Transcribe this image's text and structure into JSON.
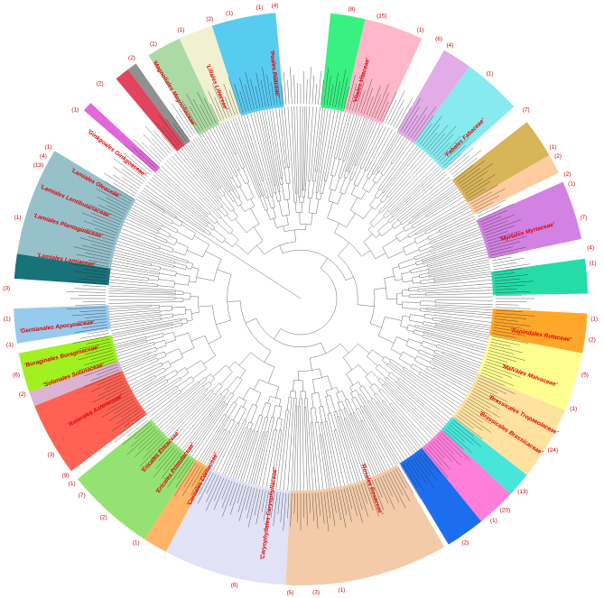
{
  "figure": {
    "counts": [
      {
        "text": "(8)",
        "angle": -80
      },
      {
        "text": "(15)",
        "angle": -74
      },
      {
        "text": "(1)",
        "angle": -66
      },
      {
        "text": "(6)",
        "angle": -62
      },
      {
        "text": "(4)",
        "angle": -59.5
      },
      {
        "text": "(1)",
        "angle": -50
      },
      {
        "text": "(7)",
        "angle": -40
      },
      {
        "text": "(1)",
        "angle": -31
      },
      {
        "text": "(2)",
        "angle": -29
      },
      {
        "text": "(2)",
        "angle": -25
      },
      {
        "text": "(1)",
        "angle": -23
      },
      {
        "text": "(7)",
        "angle": -16
      },
      {
        "text": "(4)",
        "angle": -10
      },
      {
        "text": "(1)",
        "angle": -7
      },
      {
        "text": "(1)",
        "angle": 4
      },
      {
        "text": "(2)",
        "angle": 8
      },
      {
        "text": "(5)",
        "angle": 15
      },
      {
        "text": "(1)",
        "angle": 22
      },
      {
        "text": "(24)",
        "angle": 31
      },
      {
        "text": "(13)",
        "angle": 41
      },
      {
        "text": "(20)",
        "angle": 46
      },
      {
        "text": "(1)",
        "angle": 49
      },
      {
        "text": "(2)",
        "angle": 56
      },
      {
        "text": "(1)",
        "angle": 82
      },
      {
        "text": "(3)",
        "angle": 87
      },
      {
        "text": "(5)",
        "angle": 92
      },
      {
        "text": "(6)",
        "angle": 103
      },
      {
        "text": "(1)",
        "angle": 124
      },
      {
        "text": "(2)",
        "angle": 132
      },
      {
        "text": "(7)",
        "angle": 138
      },
      {
        "text": "(1)",
        "angle": 141
      },
      {
        "text": "(9)",
        "angle": 143
      },
      {
        "text": "(3)",
        "angle": 148
      },
      {
        "text": "(2)",
        "angle": 161
      },
      {
        "text": "(6)",
        "angle": 165
      },
      {
        "text": "(1)",
        "angle": 171
      },
      {
        "text": "(1)",
        "angle": 176
      },
      {
        "text": "(3)",
        "angle": 182
      },
      {
        "text": "(1)",
        "angle": 196
      },
      {
        "text": "(13)",
        "angle": 207
      },
      {
        "text": "(4)",
        "angle": 209
      },
      {
        "text": "(1)",
        "angle": 211
      },
      {
        "text": "(1)",
        "angle": 220
      },
      {
        "text": "(2)",
        "angle": 227
      },
      {
        "text": "(2)",
        "angle": 235
      },
      {
        "text": "(1)",
        "angle": 240
      },
      {
        "text": "(1)",
        "angle": 246
      },
      {
        "text": "(2)",
        "angle": 252
      },
      {
        "text": "(1)",
        "angle": 256
      },
      {
        "text": "(1)",
        "angle": 262
      },
      {
        "text": "(4)",
        "angle": 265
      }
    ],
    "clade_labels": [
      {
        "text": "'Lamiales Lamiaceae'",
        "angle": 189,
        "r": 230
      },
      {
        "text": "'Lamiales Plantaginaceae'",
        "angle": 197,
        "r": 230
      },
      {
        "text": "'Lamiales Lentibulariaceae'",
        "angle": 203,
        "r": 230
      },
      {
        "text": "'Lamiales Oleaceae'",
        "angle": 209,
        "r": 230
      },
      {
        "text": "'Gentianales Apocynaceae'",
        "angle": 173,
        "r": 230
      },
      {
        "text": "'Boraginales Boraginaceae'",
        "angle": 166,
        "r": 230
      },
      {
        "text": "'Solanales Solanaceae'",
        "angle": 161,
        "r": 230
      },
      {
        "text": "'Asterales Asteraceae'",
        "angle": 151,
        "r": 225
      },
      {
        "text": "'Ericales Ericaceae'",
        "angle": 132,
        "r": 200
      },
      {
        "text": "'Ericales Primulaceae'",
        "angle": 126,
        "r": 200
      },
      {
        "text": "'Cornales Cornaceae'",
        "angle": 118,
        "r": 195
      },
      {
        "text": "'Caryophyllales Caryophyllaceae'",
        "angle": 98,
        "r": 190
      },
      {
        "text": "'Rosales Rosaceae'",
        "angle": 70,
        "r": 195
      },
      {
        "text": "'Malvales Malvaceae'",
        "angle": 19,
        "r": 235
      },
      {
        "text": "'Brassicales Brassicaceae'",
        "angle": 33,
        "r": 235
      },
      {
        "text": "'Brassicales Tropaeolaceae'",
        "angle": 28,
        "r": 235
      },
      {
        "text": "'Sapindales Rutaceae'",
        "angle": 9,
        "r": 235
      },
      {
        "text": "'Myrtales Myrtaceae'",
        "angle": -16,
        "r": 230
      },
      {
        "text": "'Fabales Fabaceae'",
        "angle": -44,
        "r": 225
      },
      {
        "text": "'Vitales Vitaceae'",
        "angle": -74,
        "r": 225
      },
      {
        "text": "'Poales Poaceae'",
        "angle": -97,
        "r": 225
      },
      {
        "text": "'Liliales Liliaceae'",
        "angle": -112,
        "r": 225
      },
      {
        "text": "'Magnoliales Magnoliaceae'",
        "angle": -122,
        "r": 225
      },
      {
        "text": "'Ginkgoales Ginkgoaceae'",
        "angle": -142,
        "r": 220
      }
    ],
    "colors": {
      "branch": "#6a6a6a",
      "leaf_text": "#222222",
      "count_label": "#d40000",
      "clade_label": "#e00000"
    },
    "sectors": [
      {
        "from": -84,
        "to": -77,
        "color": "#2ef07a"
      },
      {
        "from": -77,
        "to": -65,
        "color": "#ffb3c6"
      },
      {
        "from": -60,
        "to": -54,
        "color": "#e0a8e8"
      },
      {
        "from": -54,
        "to": -42,
        "color": "#80e9ee"
      },
      {
        "from": -38,
        "to": -30,
        "color": "#d6b150"
      },
      {
        "from": -30,
        "to": -26,
        "color": "#ffc99a"
      },
      {
        "from": -24,
        "to": -12,
        "color": "#d07be0"
      },
      {
        "from": -8,
        "to": -1,
        "color": "#19d9a2"
      },
      {
        "from": 3,
        "to": 11,
        "color": "#ffa21f"
      },
      {
        "from": 11,
        "to": 23,
        "color": "#ffff8a"
      },
      {
        "from": 23,
        "to": 38,
        "color": "#ffe09a"
      },
      {
        "from": 38,
        "to": 43,
        "color": "#3ee4d8"
      },
      {
        "from": 43,
        "to": 51,
        "color": "#ff77d8"
      },
      {
        "from": 51,
        "to": 59,
        "color": "#1166ee"
      },
      {
        "from": 60,
        "to": 93,
        "color": "#f2c8a4"
      },
      {
        "from": 93,
        "to": 118,
        "color": "#dfe0f6"
      },
      {
        "from": 118,
        "to": 123,
        "color": "#ffb060"
      },
      {
        "from": 123,
        "to": 141,
        "color": "#8ee26a"
      },
      {
        "from": 143,
        "to": 158,
        "color": "#ff5a4a"
      },
      {
        "from": 158,
        "to": 161,
        "color": "#d8b0d0"
      },
      {
        "from": 161,
        "to": 169,
        "color": "#9cf014"
      },
      {
        "from": 171,
        "to": 178,
        "color": "#90c8ec"
      },
      {
        "from": 184,
        "to": 189,
        "color": "#0b6b72"
      },
      {
        "from": 189,
        "to": 211,
        "color": "#90bec8"
      },
      {
        "from": 221,
        "to": 223,
        "color": "#e060d8"
      },
      {
        "from": 230,
        "to": 233,
        "color": "#e03a54"
      },
      {
        "from": 233,
        "to": 235,
        "color": "#8a8a8a"
      },
      {
        "from": 238,
        "to": 245,
        "color": "#a6d8a0"
      },
      {
        "from": 245,
        "to": 252,
        "color": "#f0f0d0"
      },
      {
        "from": 252,
        "to": 265,
        "color": "#4fc8f0"
      }
    ]
  }
}
